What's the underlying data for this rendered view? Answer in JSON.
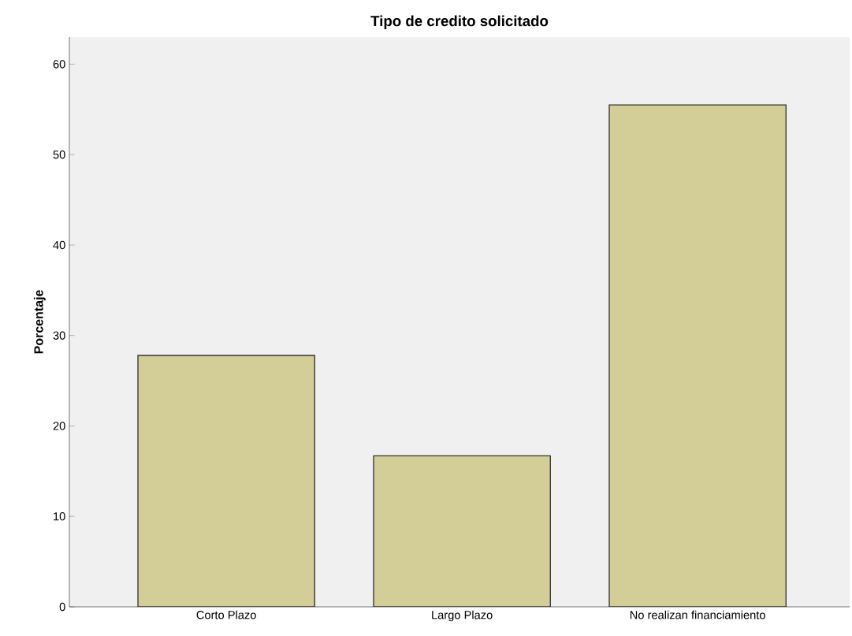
{
  "chart_data": {
    "type": "bar",
    "title": "Tipo de credito solicitado",
    "ylabel": "Porcentaje",
    "categories": [
      "Corto Plazo",
      "Largo Plazo",
      "No realizan financiamiento"
    ],
    "values": [
      27.8,
      16.7,
      55.5
    ],
    "color": "#d3ce97",
    "ylim": [
      0,
      63
    ],
    "yticks": [
      0,
      10,
      20,
      30,
      40,
      50,
      60
    ],
    "grid": false
  }
}
